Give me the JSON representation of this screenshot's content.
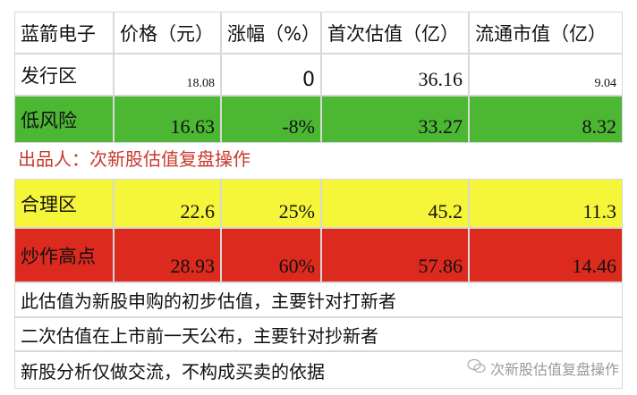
{
  "header": [
    "蓝箭电子",
    "价格（元）",
    "涨幅（%）",
    "首次估值（亿）",
    "流通市值（亿）"
  ],
  "rows": [
    {
      "label": "发行区",
      "values": [
        "18.08",
        "0",
        "36.16",
        "9.04"
      ],
      "color": "#ffffff"
    },
    {
      "label": "低风险",
      "values": [
        "16.63",
        "-8%",
        "33.27",
        "8.32"
      ],
      "color": "#4cb733"
    },
    {
      "label": "合理区",
      "values": [
        "22.6",
        "25%",
        "45.2",
        "11.3"
      ],
      "color": "#f5f53a"
    },
    {
      "label": "炒作高点",
      "values": [
        "28.93",
        "60%",
        "57.86",
        "14.46"
      ],
      "color": "#dd2a1e"
    }
  ],
  "credit": "出品人：次新股估值复盘操作",
  "notes": [
    "此估值为新股申购的初步估值，主要针对打新者",
    "二次估值在上市前一天公布，主要针对抄新者",
    "新股分析仅做交流，不构成买卖的依据"
  ],
  "watermark": {
    "icon": "wechat-icon",
    "text": "次新股估值复盘操作"
  }
}
